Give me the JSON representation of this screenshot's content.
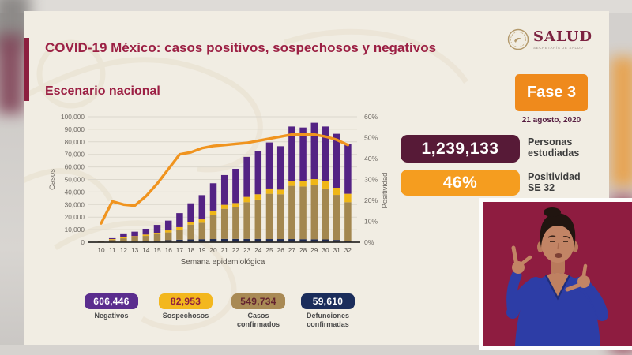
{
  "slide": {
    "title": "COVID-19 México: casos positivos, sospechosos y negativos",
    "section_title": "Escenario nacional",
    "logo": {
      "text": "SALUD",
      "subtext": "SECRETARÍA DE SALUD"
    },
    "phase_badge": {
      "label": "Fase 3",
      "date": "21 agosto, 2020",
      "color": "#ef8a1c"
    },
    "kpis": [
      {
        "value": "1,239,133",
        "label_lines": [
          "Personas",
          "estudiadas"
        ],
        "color": "#571a37",
        "text_color": "#ffffff"
      },
      {
        "value": "46%",
        "label_lines": [
          "Positividad",
          "SE 32"
        ],
        "color": "#f59d1f",
        "text_color": "#ffffff"
      }
    ],
    "summary_boxes": [
      {
        "value": "606,446",
        "label_lines": [
          "Negativos"
        ],
        "color": "#5b2d8e",
        "text_color": "#ffffff"
      },
      {
        "value": "82,953",
        "label_lines": [
          "Sospechosos"
        ],
        "color": "#f3b71e",
        "text_color": "#8e1d3f"
      },
      {
        "value": "549,734",
        "label_lines": [
          "Casos",
          "confirmados"
        ],
        "color": "#a98a55",
        "text_color": "#63222f"
      },
      {
        "value": "59,610",
        "label_lines": [
          "Defunciones",
          "confirmadas"
        ],
        "color": "#1b2d5b",
        "text_color": "#ffffff"
      }
    ]
  },
  "chart_data": {
    "type": "bar",
    "stacked": true,
    "title": "Escenario nacional",
    "xlabel": "Semana epidemiológica",
    "ylabel_left": "Casos",
    "ylabel_right": "Positividad",
    "ylim_left": [
      0,
      100000
    ],
    "ylim_right": [
      0,
      60
    ],
    "ytick_step_left": 10000,
    "ytick_step_right": 10,
    "yticks_left": [
      "0",
      "10,000",
      "20,000",
      "30,000",
      "40,000",
      "50,000",
      "60,000",
      "70,000",
      "80,000",
      "90,000",
      "100,000"
    ],
    "yticks_right": [
      "0%",
      "10%",
      "20%",
      "30%",
      "40%",
      "50%",
      "60%"
    ],
    "grid": true,
    "legend": "none",
    "categories": [
      "10",
      "11",
      "12",
      "13",
      "14",
      "15",
      "16",
      "17",
      "18",
      "19",
      "20",
      "21",
      "22",
      "23",
      "24",
      "25",
      "26",
      "27",
      "28",
      "29",
      "30",
      "31",
      "32"
    ],
    "series": [
      {
        "name": "Defunciones confirmadas",
        "color": "#1f2a52",
        "values": [
          100,
          200,
          300,
          500,
          800,
          1200,
          1600,
          2000,
          2200,
          2400,
          2500,
          2600,
          2600,
          2600,
          2600,
          2500,
          2500,
          2500,
          2400,
          2300,
          2200,
          1800,
          1000
        ]
      },
      {
        "name": "Casos confirmados",
        "color": "#a3874f",
        "values": [
          740,
          1800,
          2800,
          3500,
          4200,
          5100,
          6200,
          7900,
          11800,
          13100,
          19300,
          24000,
          25100,
          29300,
          31400,
          36100,
          35700,
          42400,
          42000,
          43200,
          40600,
          35900,
          30900
        ]
      },
      {
        "name": "Sospechosos",
        "color": "#efb617",
        "values": [
          210,
          500,
          800,
          800,
          1100,
          1200,
          1600,
          2100,
          2100,
          2700,
          3400,
          3200,
          3500,
          4200,
          4200,
          4200,
          3700,
          4100,
          4200,
          4800,
          5800,
          5700,
          6700
        ]
      },
      {
        "name": "Negativos",
        "color": "#542384",
        "values": [
          150,
          700,
          3100,
          3600,
          4600,
          6300,
          7800,
          11200,
          14900,
          19300,
          21800,
          23700,
          27300,
          31900,
          34300,
          36700,
          34600,
          43200,
          42800,
          44900,
          43600,
          43000,
          39400
        ]
      }
    ],
    "line": {
      "name": "Positividad (%)",
      "color": "#f0941f",
      "axis": "right",
      "values": [
        9,
        19.5,
        18,
        17.5,
        22,
        28,
        35,
        42,
        43,
        45,
        46,
        46.5,
        47,
        47.5,
        48.5,
        49.5,
        50.5,
        51.5,
        51.5,
        51.5,
        50.5,
        49,
        46.5
      ]
    }
  }
}
